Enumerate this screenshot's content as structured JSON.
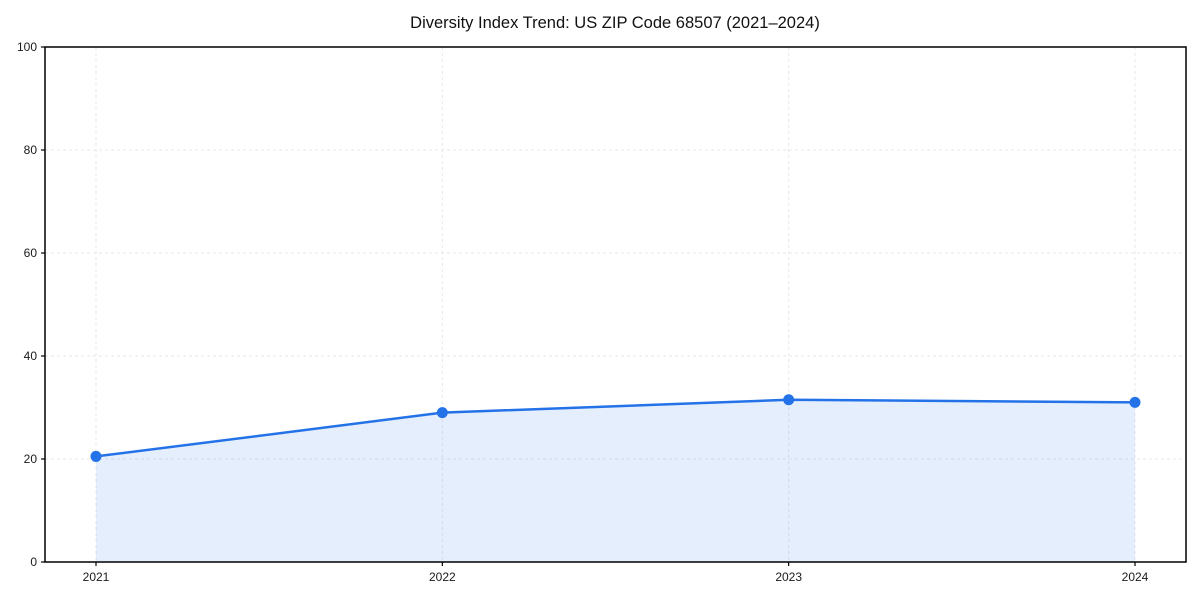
{
  "chart_data": {
    "type": "area",
    "title": "Diversity Index Trend: US ZIP Code 68507 (2021–2024)",
    "series": [
      {
        "name": "Diversity Index",
        "x": [
          2021,
          2022,
          2023,
          2024
        ],
        "values": [
          20.5,
          29,
          31.5,
          31
        ]
      }
    ],
    "xticks": [
      "2021",
      "2022",
      "2023",
      "2024"
    ],
    "yticks": [
      0,
      20,
      40,
      60,
      80,
      100
    ],
    "ylim": [
      0,
      100
    ],
    "xlabel": "",
    "ylabel": "",
    "grid": true,
    "grid_style": "dashed",
    "legend": "none",
    "marker": "circle",
    "colors": {
      "line": "#2472e8",
      "marker": "#2472e8",
      "fill": "rgba(36,114,232,0.12)",
      "grid": "#e7e7e7",
      "frame": "#000000",
      "tick_label": "#1a1a1a",
      "title": "#111111",
      "background": "#ffffff"
    }
  }
}
